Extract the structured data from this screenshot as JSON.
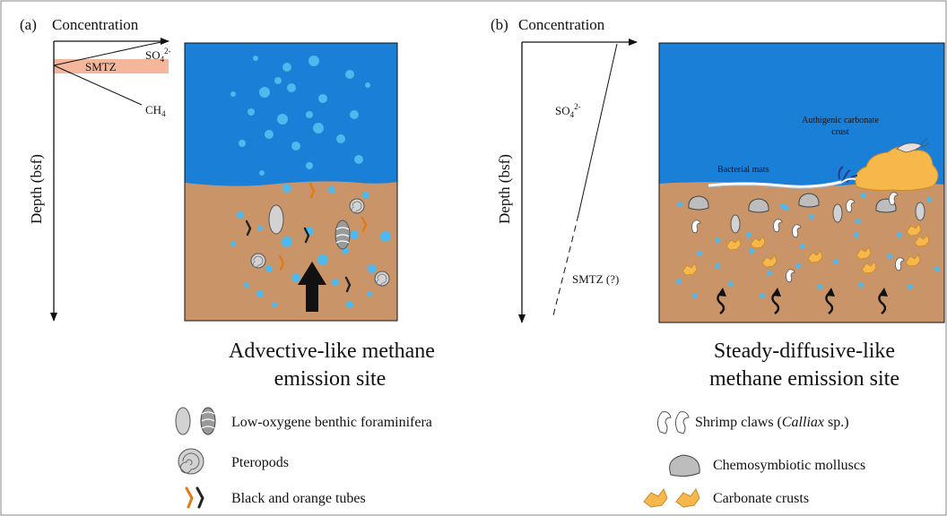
{
  "panel_a": {
    "tag": "(a)",
    "concentration_label": "Concentration",
    "depth_label": "Depth (bsf)",
    "so4_label": "SO",
    "so4_sub": "4",
    "so4_sup": "2-",
    "smtz_label": "SMTZ",
    "ch4_label": "CH",
    "ch4_sub": "4",
    "title_line1": "Advective-like methane",
    "title_line2": "emission site"
  },
  "panel_b": {
    "tag": "(b)",
    "concentration_label": "Concentration",
    "depth_label": "Depth (bsf)",
    "so4_label": "SO",
    "so4_sub": "4",
    "so4_sup": "2-",
    "smtz_label": "SMTZ (?)",
    "crust_label_line1": "Authigenic carbonate",
    "crust_label_line2": "crust",
    "mats_label": "Bacterial mats",
    "title_line1": "Steady-diffusive-like",
    "title_line2": "methane emission site"
  },
  "legend": {
    "foraminifera": "Low-oxygene benthic foraminifera",
    "pteropods": "Pteropods",
    "tubes": "Black and orange tubes",
    "shrimp_prefix": "Shrimp claws (",
    "shrimp_italic": "Calliax",
    "shrimp_suffix": " sp.)",
    "molluscs": "Chemosymbiotic molluscs",
    "crusts": "Carbonate crusts"
  },
  "colors": {
    "water": "#1a7fd6",
    "sediment": "#c99467",
    "bubble": "#4fb8ec",
    "smtz_band": "#f4b79c",
    "carbonate": "#f7b84b",
    "shell": "#d2d2d2"
  }
}
